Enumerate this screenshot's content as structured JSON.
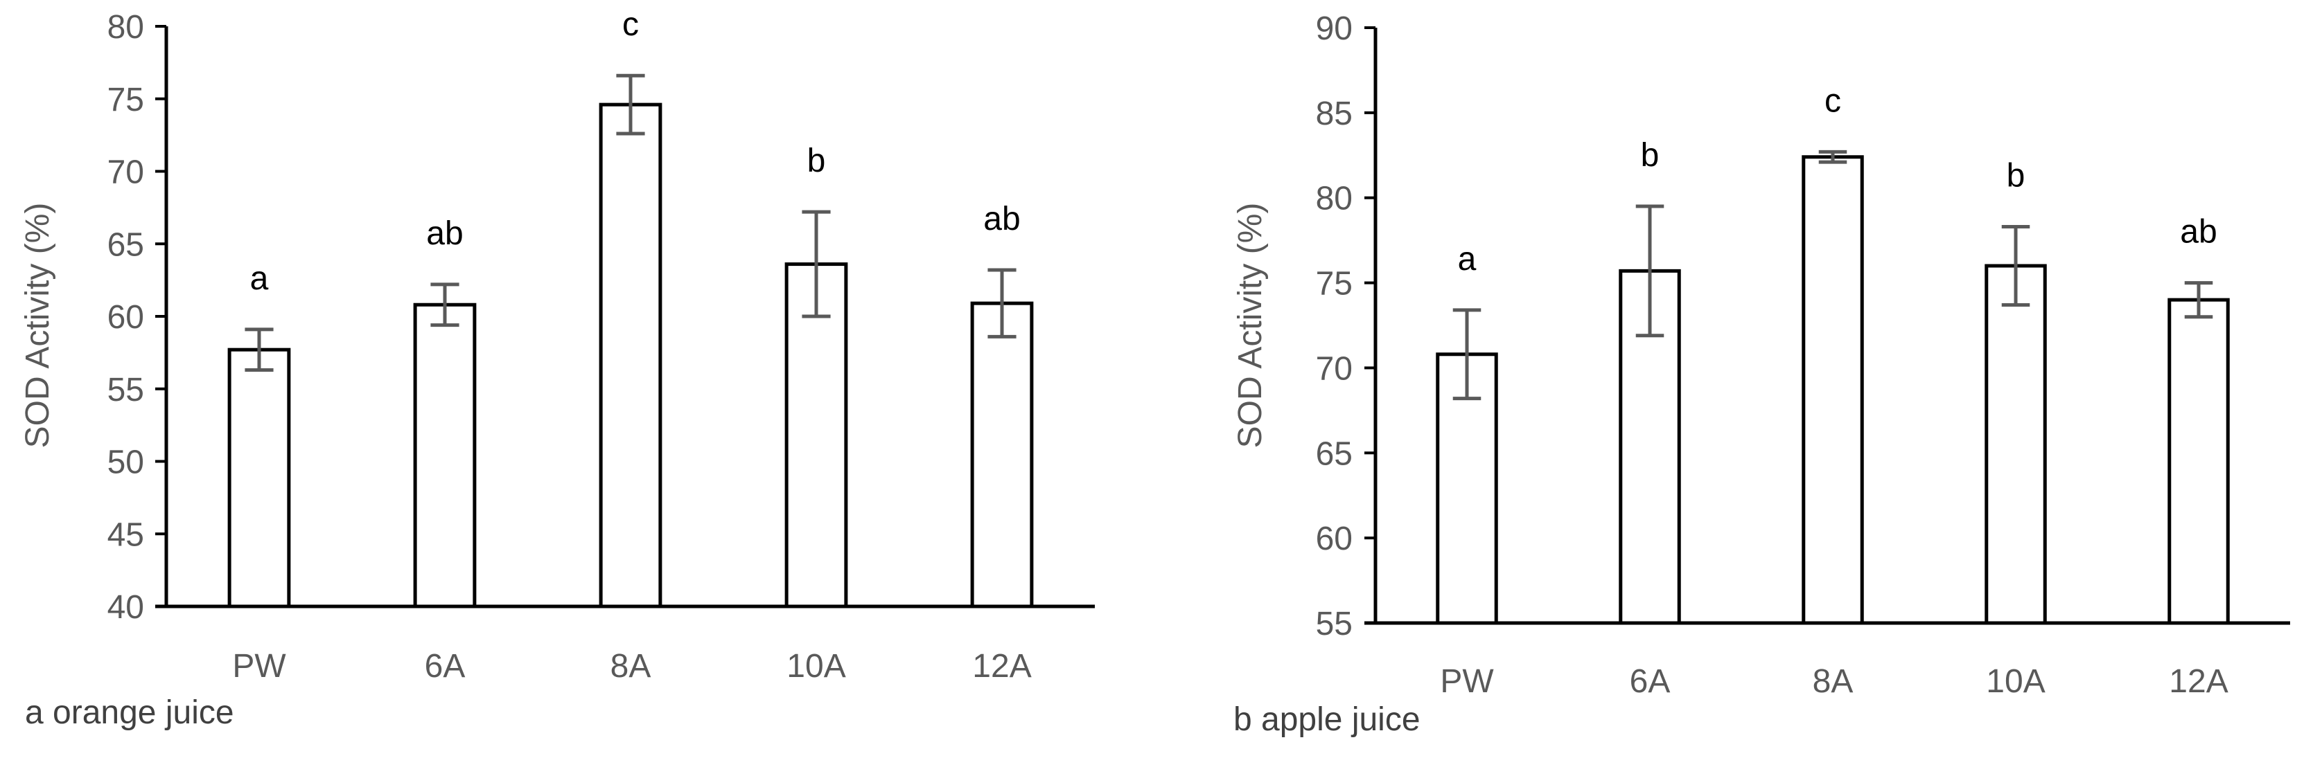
{
  "chart_data": [
    {
      "type": "bar",
      "caption": "a orange juice",
      "ylabel": "SOD Activity (%)",
      "categories": [
        "PW",
        "6A",
        "8A",
        "10A",
        "12A"
      ],
      "values": [
        57.7,
        60.8,
        74.6,
        63.6,
        60.9
      ],
      "errors": [
        1.4,
        1.4,
        2.0,
        3.6,
        2.3
      ],
      "letters": [
        "a",
        "ab",
        "c",
        "b",
        "ab"
      ],
      "ylim": [
        40,
        80
      ],
      "yticks": [
        40,
        45,
        50,
        55,
        60,
        65,
        70,
        75,
        80
      ],
      "grid": false,
      "bar_fill": "#ffffff",
      "bar_stroke": "#000000",
      "errorbar_color": "#595959"
    },
    {
      "type": "bar",
      "caption": "b apple juice",
      "ylabel": "SOD Activity (%)",
      "categories": [
        "PW",
        "6A",
        "8A",
        "10A",
        "12A"
      ],
      "values": [
        70.8,
        75.7,
        82.4,
        76.0,
        74.0
      ],
      "errors": [
        2.6,
        3.8,
        0.3,
        2.3,
        1.0
      ],
      "letters": [
        "a",
        "b",
        "c",
        "b",
        "ab"
      ],
      "ylim": [
        55,
        90
      ],
      "yticks": [
        55,
        60,
        65,
        70,
        75,
        80,
        85,
        90
      ],
      "grid": false,
      "bar_fill": "#ffffff",
      "bar_stroke": "#000000",
      "errorbar_color": "#595959"
    }
  ]
}
